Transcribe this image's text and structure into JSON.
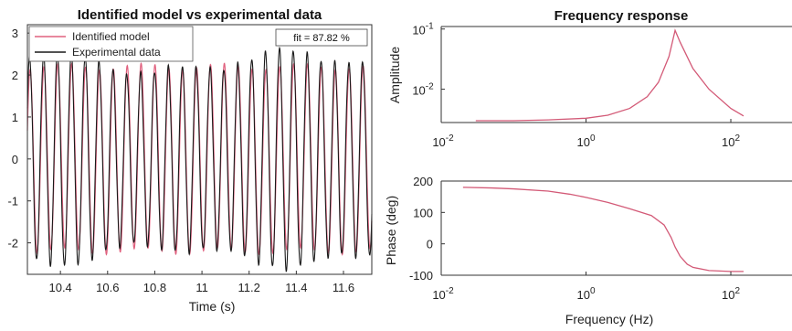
{
  "chart_data": [
    {
      "type": "line",
      "title": "Identified model vs experimental data",
      "xlabel": "Time (s)",
      "ylabel": "",
      "xlim": [
        10.26,
        11.72
      ],
      "ylim": [
        -2.75,
        3.2
      ],
      "xticks": [
        10.4,
        10.6,
        10.8,
        11,
        11.2,
        11.4,
        11.6
      ],
      "xtick_labels": [
        "10.4",
        "10.6",
        "10.8",
        "11",
        "11.2",
        "11.4",
        "11.6"
      ],
      "yticks": [
        3,
        2,
        1,
        0,
        -1,
        -2
      ],
      "ytick_labels": [
        "3",
        "2",
        "1",
        "0",
        "-1",
        "-2"
      ],
      "annotation": "fit = 87.82 %",
      "legend_position": "top-left",
      "series": [
        {
          "name": "Identified model",
          "color": "#e0607e",
          "frequency_hz": 17,
          "amplitude": 2.2
        },
        {
          "name": "Experimental data",
          "color": "#1a1a1a",
          "frequency_hz": 17,
          "amplitude": 2.3
        }
      ]
    },
    {
      "type": "line",
      "title": "Frequency response",
      "xlabel": "",
      "ylabel": "Amplitude",
      "x_scale": "log",
      "y_scale": "log",
      "xlim": [
        0.01,
        700
      ],
      "ylim": [
        0.0028,
        0.11
      ],
      "xtick_labels": [
        "10-2",
        "100",
        "102"
      ],
      "ytick_labels": [
        "10-1",
        "10-2"
      ],
      "series": [
        {
          "name": "",
          "color": "#d35a77",
          "x": [
            0.03,
            0.1,
            0.3,
            1,
            2,
            4,
            7,
            10,
            14,
            17,
            20,
            30,
            50,
            100,
            150
          ],
          "y": [
            0.003,
            0.003,
            0.0031,
            0.0033,
            0.0037,
            0.0048,
            0.0075,
            0.013,
            0.035,
            0.095,
            0.06,
            0.022,
            0.01,
            0.0048,
            0.0036
          ]
        }
      ]
    },
    {
      "type": "line",
      "title": "",
      "xlabel": "Frequency (Hz)",
      "ylabel": "Phase (deg)",
      "x_scale": "log",
      "xlim": [
        0.01,
        700
      ],
      "ylim": [
        -100,
        200
      ],
      "yticks": [
        200,
        100,
        0,
        -100
      ],
      "ytick_labels": [
        "200",
        "100",
        "0",
        "-100"
      ],
      "xtick_labels": [
        "10-2",
        "100",
        "102"
      ],
      "series": [
        {
          "name": "",
          "color": "#d35a77",
          "x": [
            0.02,
            0.05,
            0.1,
            0.3,
            0.6,
            1,
            2,
            4,
            8,
            12,
            15,
            17,
            20,
            25,
            30,
            50,
            100,
            150
          ],
          "y": [
            180,
            178,
            175,
            168,
            158,
            148,
            132,
            112,
            90,
            60,
            20,
            -10,
            -40,
            -65,
            -75,
            -85,
            -88,
            -88
          ]
        }
      ]
    }
  ]
}
